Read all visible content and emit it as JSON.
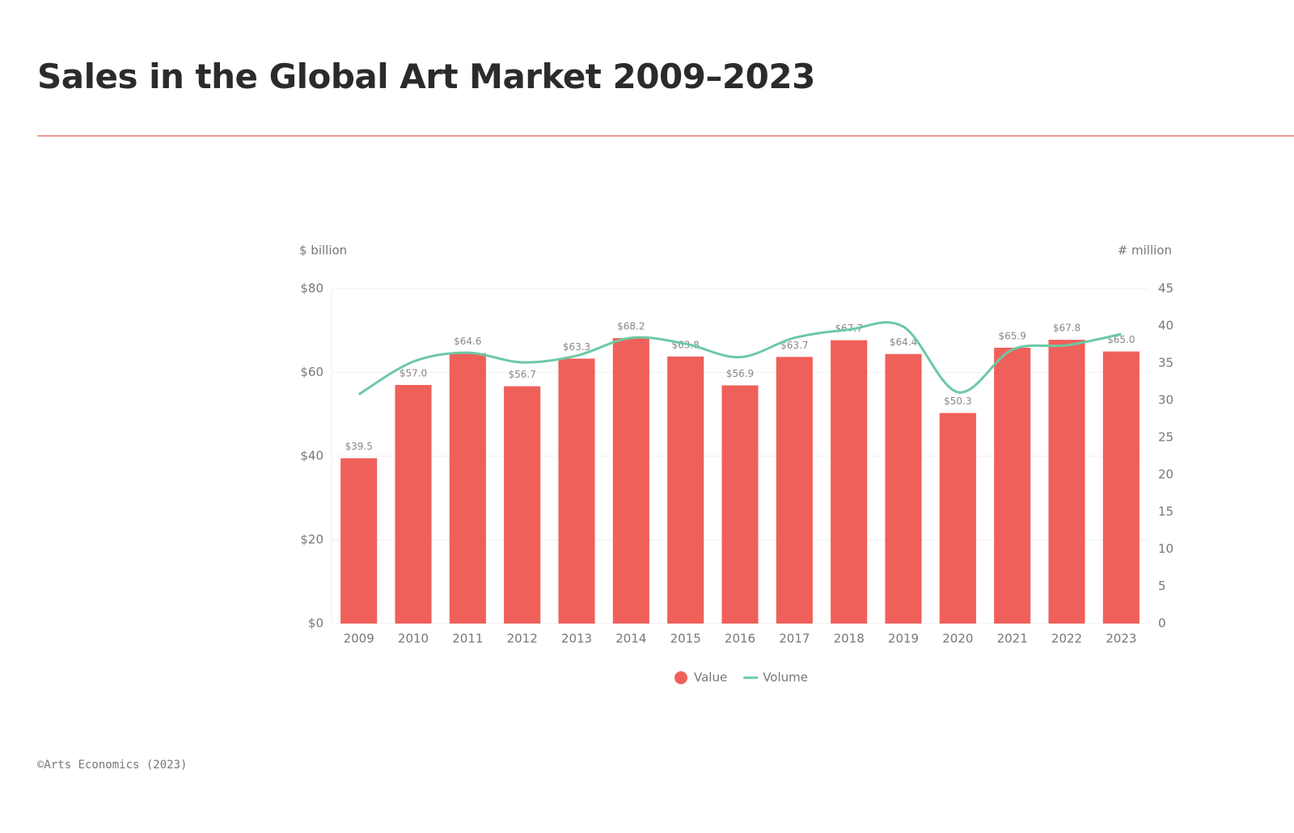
{
  "title": "Sales in the Global Art Market 2009–2023",
  "footer": "©Arts Economics (2023)",
  "chart_data": {
    "type": "bar",
    "y_label": "$ billion",
    "y2_label": "# million",
    "categories": [
      "2009",
      "2010",
      "2011",
      "2012",
      "2013",
      "2014",
      "2015",
      "2016",
      "2017",
      "2018",
      "2019",
      "2020",
      "2021",
      "2022",
      "2023"
    ],
    "series": [
      {
        "name": "Value",
        "color": "#f0605a",
        "type": "bar",
        "values": [
          39.5,
          57.0,
          64.6,
          56.7,
          63.3,
          68.2,
          63.8,
          56.9,
          63.7,
          67.7,
          64.4,
          50.3,
          65.9,
          67.8,
          65.0
        ],
        "value_labels": [
          "$39.5",
          "$57.0",
          "$64.6",
          "$56.7",
          "$63.3",
          "$68.2",
          "$63.8",
          "$56.9",
          "$63.7",
          "$67.7",
          "$64.4",
          "$50.3",
          "$65.9",
          "$67.8",
          "$65.0"
        ]
      },
      {
        "name": "Volume",
        "color": "#6cc9a5",
        "type": "line",
        "axis": "y2",
        "values": [
          30.8,
          35.2,
          36.4,
          35.1,
          36.0,
          38.4,
          37.6,
          35.8,
          38.4,
          39.5,
          39.9,
          31.1,
          36.8,
          37.4,
          38.9
        ]
      }
    ],
    "ylim": [
      0,
      80
    ],
    "yticks": [
      {
        "value": 0,
        "label": "$0"
      },
      {
        "value": 20,
        "label": "$20"
      },
      {
        "value": 40,
        "label": "$40"
      },
      {
        "value": 60,
        "label": "$60"
      },
      {
        "value": 80,
        "label": "$80"
      }
    ],
    "y2lim": [
      0,
      45
    ],
    "y2ticks": [
      0,
      5,
      10,
      15,
      20,
      25,
      30,
      35,
      40,
      45
    ],
    "grid": true,
    "legend": "bottom"
  }
}
